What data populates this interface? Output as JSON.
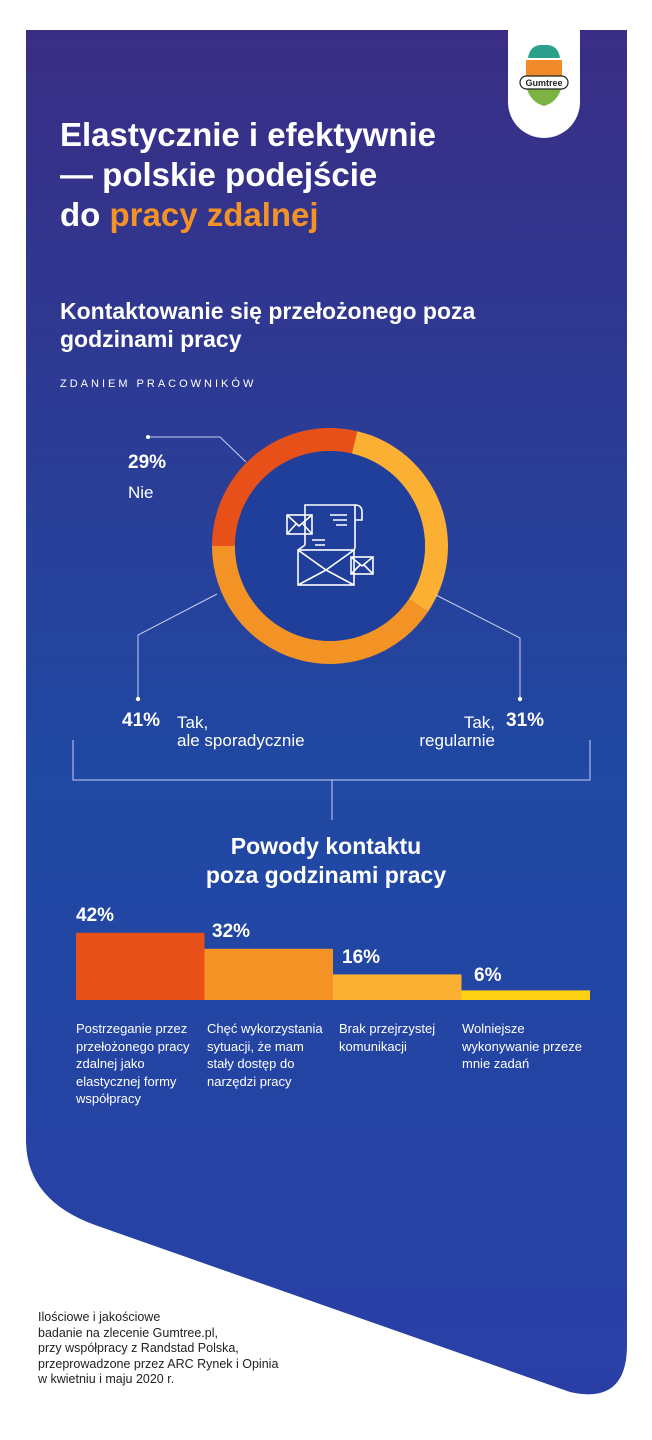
{
  "header": {
    "logo_text": "Gumtree",
    "title_line1": "Elastycznie i efektywnie",
    "title_line2": "— polskie podejście",
    "title_line3_prefix": "do ",
    "title_line3_accent": "pracy zdalnej"
  },
  "colors": {
    "panel_top": "#3a2d85",
    "panel_bottom": "#1a4fa8",
    "accent": "#f39325",
    "red_orange": "#e8501a",
    "orange": "#f39325",
    "yellow": "#fbb034",
    "bright_yellow": "#fcd116"
  },
  "icons": {
    "center": "envelope-letters-icon"
  },
  "chart_data": [
    {
      "type": "pie",
      "title": "Kontaktowanie się przełożonego poza godzinami pracy",
      "subtitle": "ZDANIEM PRACOWNIKÓW",
      "slices": [
        {
          "label": "Nie",
          "value": 29,
          "value_label": "29%",
          "color": "#e8501a"
        },
        {
          "label": "Tak, regularnie",
          "label_line1": "Tak,",
          "label_line2": "regularnie",
          "value": 31,
          "value_label": "31%",
          "color": "#fbb034"
        },
        {
          "label": "Tak, ale sporadycznie",
          "label_line1": "Tak,",
          "label_line2": "ale sporadycznie",
          "value": 41,
          "value_label": "41%",
          "color": "#f39325"
        }
      ]
    },
    {
      "type": "bar",
      "title_line1": "Powody kontaktu",
      "title_line2": "poza godzinami pracy",
      "bars": [
        {
          "value": 42,
          "value_label": "42%",
          "color": "#e8501a",
          "label": "Postrzeganie przez przełożonego pracy zdalnej jako elastycznej formy współpracy"
        },
        {
          "value": 32,
          "value_label": "32%",
          "color": "#f39325",
          "label": "Chęć wykorzystania sytuacji, że mam stały dostęp do narzędzi pracy"
        },
        {
          "value": 16,
          "value_label": "16%",
          "color": "#fbb034",
          "label": "Brak przejrzystej komunikacji"
        },
        {
          "value": 6,
          "value_label": "6%",
          "color": "#fcd116",
          "label": "Wolniejsze wykonywanie przeze mnie zadań"
        }
      ]
    }
  ],
  "footer": {
    "lines": [
      "Ilościowe i jakościowe",
      "badanie na zlecenie Gumtree.pl,",
      "przy współpracy z Randstad Polska,",
      "przeprowadzone przez ARC Rynek i Opinia",
      "w kwietniu i maju 2020 r."
    ]
  }
}
